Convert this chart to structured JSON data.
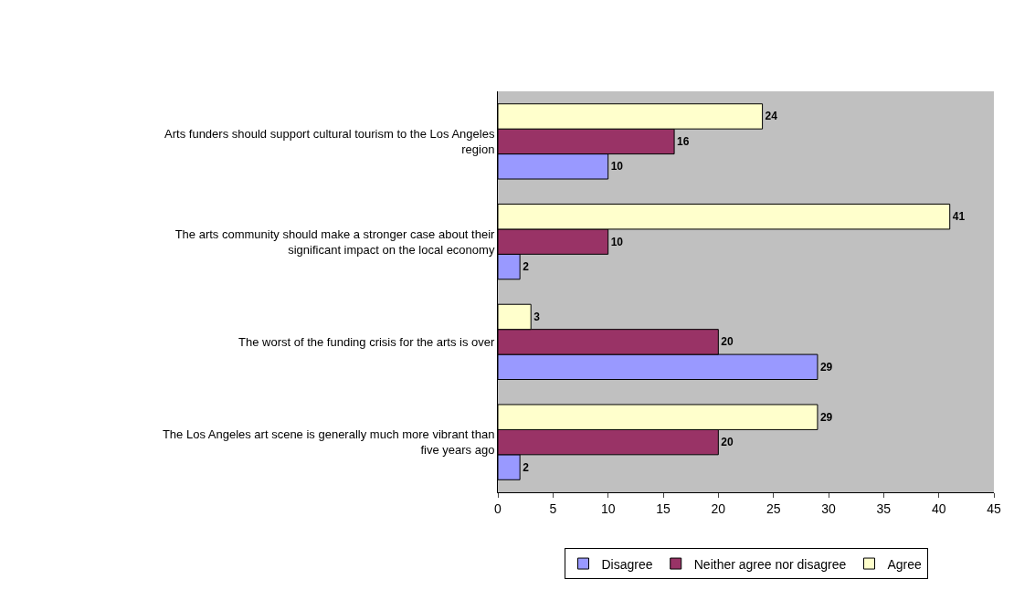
{
  "chart_data": {
    "type": "bar",
    "orientation": "horizontal",
    "categories": [
      "Arts funders should support cultural tourism to the Los Angeles region",
      "The arts community should make a stronger case about their significant impact on the local economy",
      "The worst of the funding crisis for the arts is over",
      "The Los Angeles art scene is generally much more vibrant than five years ago"
    ],
    "series": [
      {
        "name": "Disagree",
        "color": "#9999ff",
        "values": [
          10,
          2,
          29,
          2
        ]
      },
      {
        "name": "Neither agree nor disagree",
        "color": "#993366",
        "values": [
          16,
          10,
          20,
          20
        ]
      },
      {
        "name": "Agree",
        "color": "#ffffcc",
        "values": [
          24,
          41,
          3,
          29
        ]
      }
    ],
    "xlim": [
      0,
      45
    ],
    "xticks": [
      0,
      5,
      10,
      15,
      20,
      25,
      30,
      35,
      40,
      45
    ],
    "data_labels": true,
    "grid": false,
    "legend": "bottom"
  }
}
